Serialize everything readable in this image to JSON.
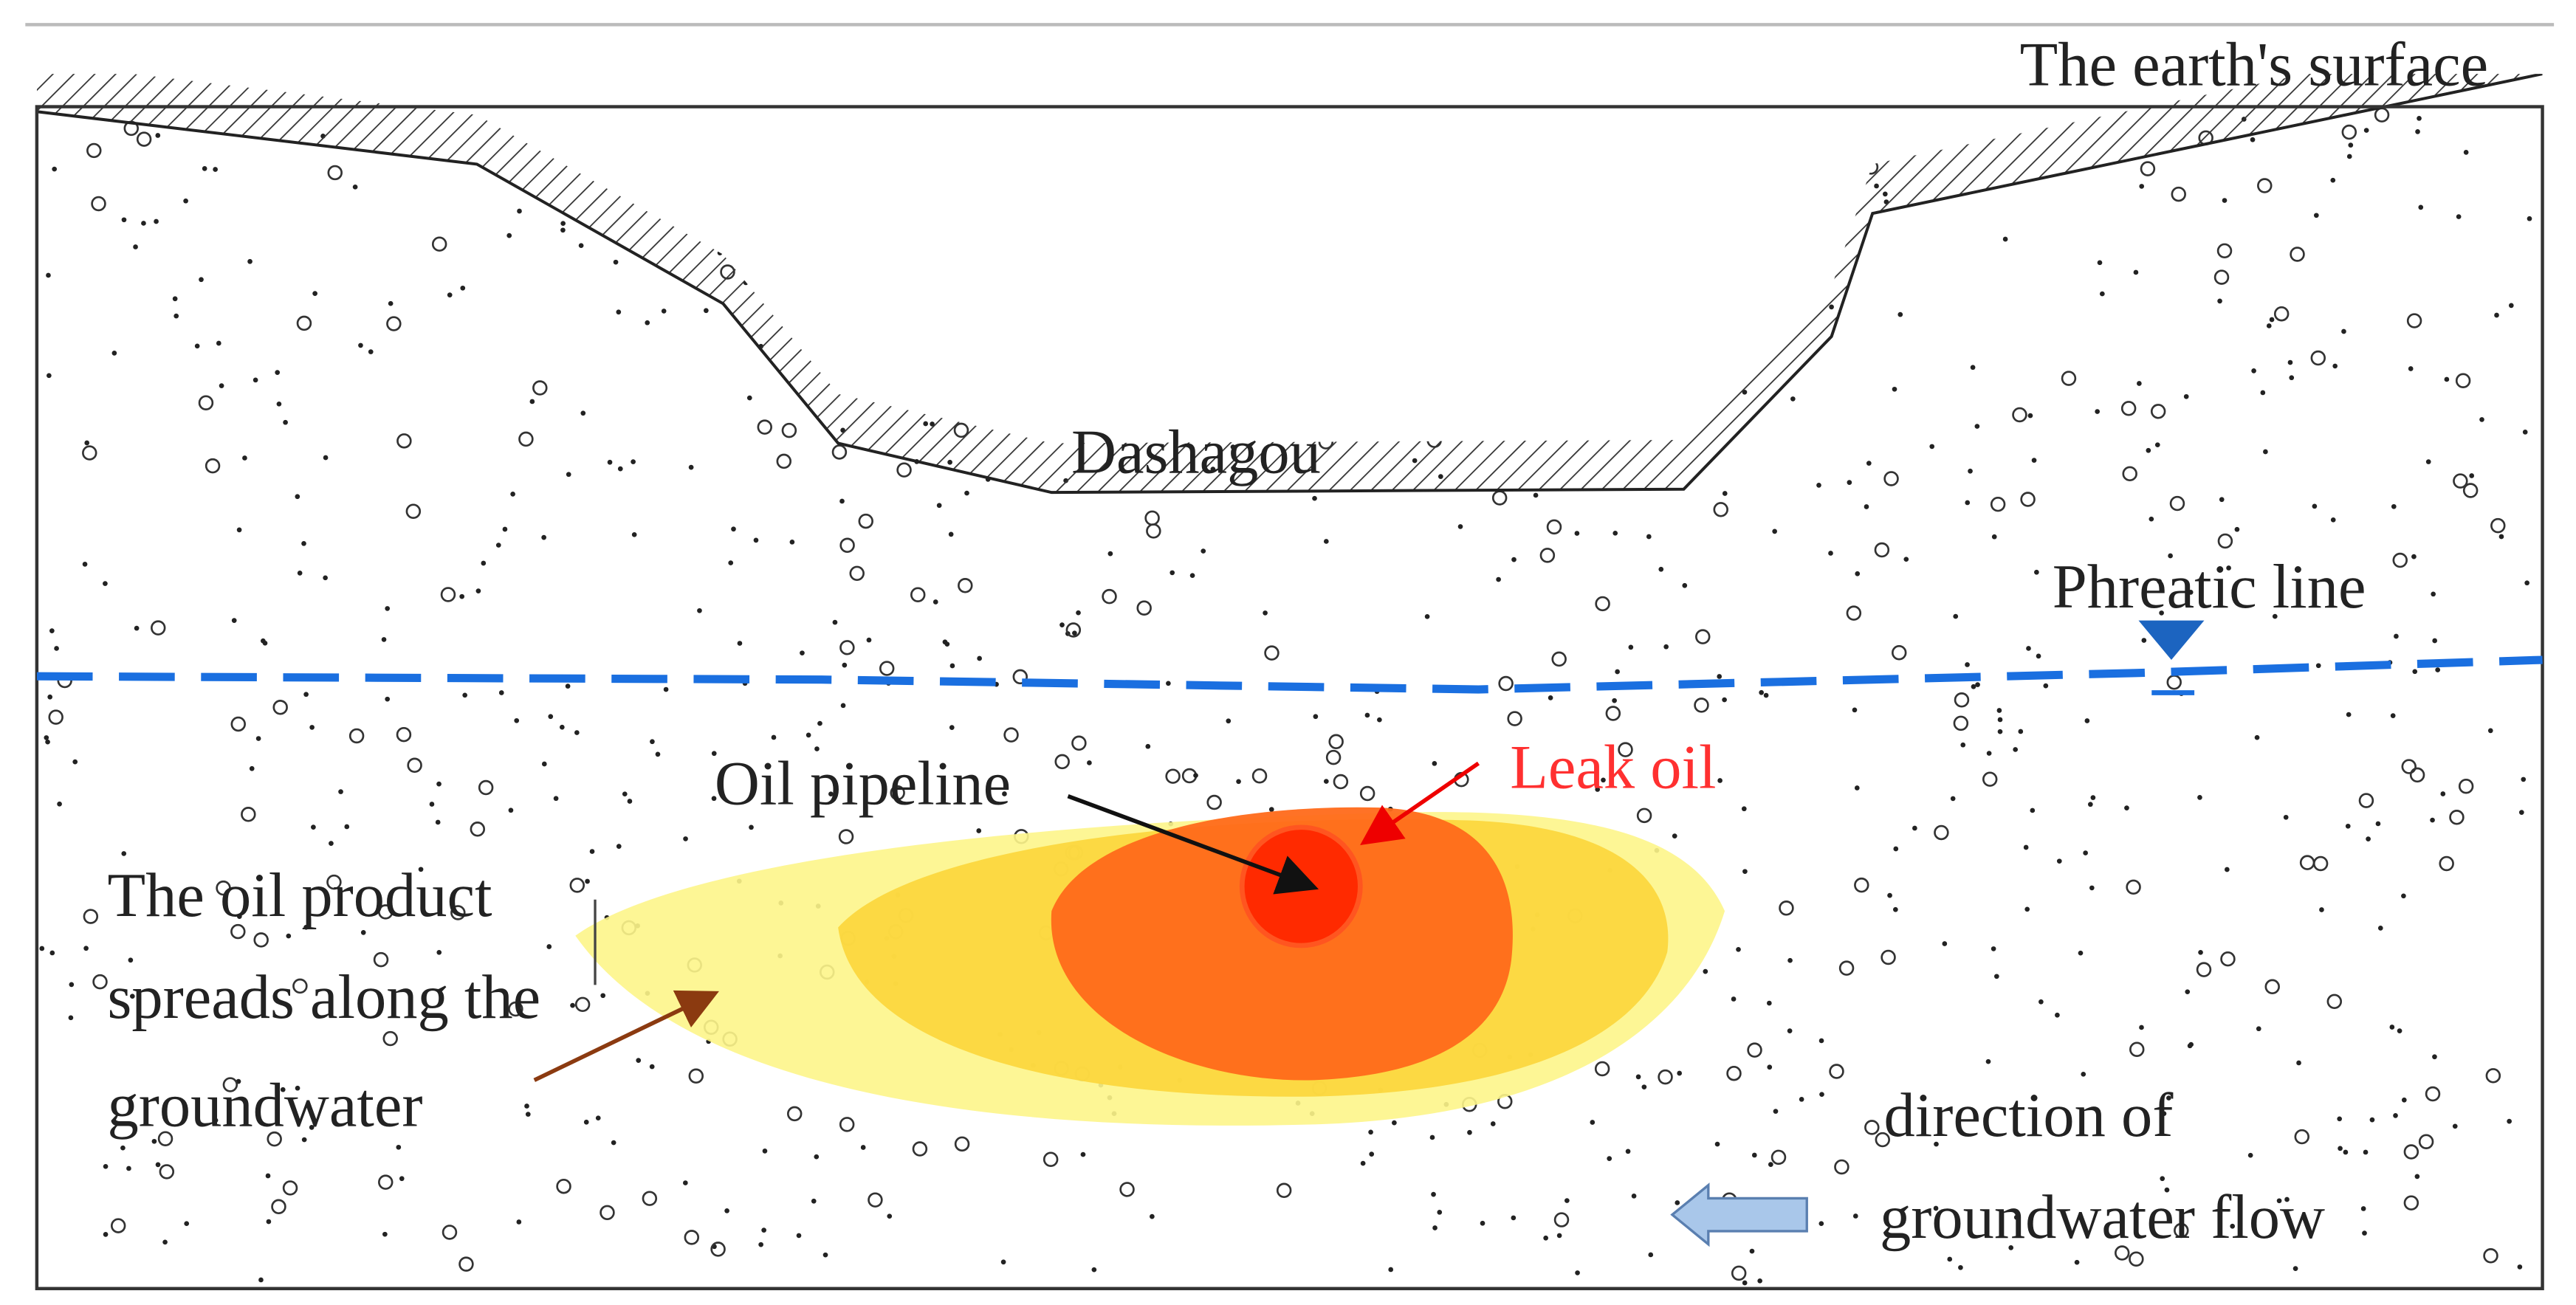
{
  "labels": {
    "earth_surface": "The earth's surface",
    "valley": "Dashagou",
    "phreatic_line": "Phreatic line",
    "pipeline": "Oil pipeline",
    "leak": "Leak oil",
    "spread": [
      "The oil product",
      "spreads along the",
      "groundwater"
    ],
    "flow": [
      "direction of",
      "groundwater flow"
    ]
  }
}
